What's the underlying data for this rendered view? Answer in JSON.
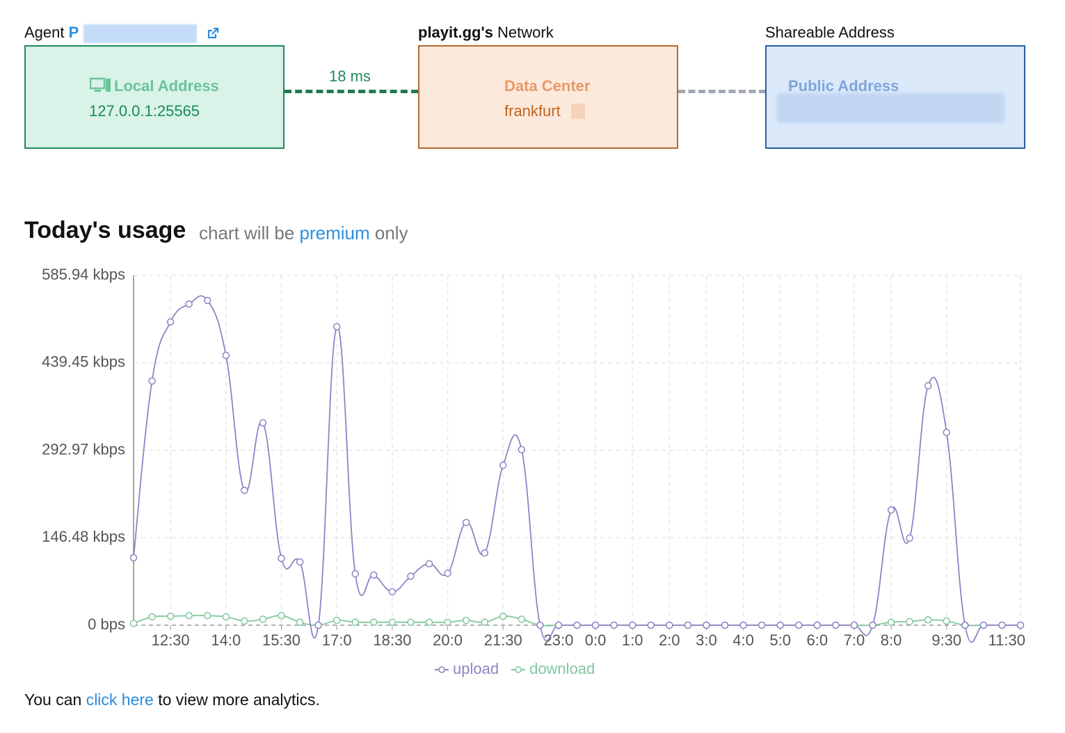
{
  "agent": {
    "label": "Agent",
    "name": "P"
  },
  "network": {
    "brand": "playit.gg's",
    "label": "Network"
  },
  "shareable": {
    "label": "Shareable Address"
  },
  "local": {
    "title": "Local Address",
    "address": "127.0.0.1:25565"
  },
  "latency": "18 ms",
  "data_center": {
    "title": "Data Center",
    "location": "frankfurt"
  },
  "public": {
    "title": "Public Address"
  },
  "usage": {
    "title": "Today's usage",
    "note": "chart will be",
    "link": "premium",
    "note_end": "only"
  },
  "footer": {
    "before": "You can",
    "link": "click here",
    "after": "to view more analytics."
  },
  "chart_data": {
    "type": "line",
    "categories": [
      null,
      null,
      "12:30",
      null,
      null,
      "14:0",
      null,
      null,
      "15:30",
      null,
      null,
      "17:0",
      null,
      null,
      "18:30",
      null,
      null,
      "20:0",
      null,
      null,
      "21:30",
      null,
      null,
      "23:0",
      null,
      "0:0",
      null,
      "1:0",
      null,
      "2:0",
      null,
      "3:0",
      null,
      "4:0",
      null,
      "5:0",
      null,
      "6:0",
      null,
      "7:0",
      null,
      "8:0",
      null,
      null,
      "9:30",
      null,
      null,
      null,
      "11:30"
    ],
    "series": [
      {
        "name": "upload",
        "color": "#8c84c6",
        "values": [
          113,
          409,
          508,
          538,
          544,
          452,
          226,
          339,
          112,
          106,
          0,
          500,
          86,
          84,
          56,
          82,
          103,
          87,
          172,
          121,
          268,
          294,
          0,
          0,
          0,
          0,
          0,
          0,
          0,
          0,
          0,
          0,
          0,
          0,
          0,
          0,
          0,
          0,
          0,
          0,
          0,
          193,
          146,
          401,
          323,
          0,
          0,
          0,
          0
        ]
      },
      {
        "name": "download",
        "color": "#7fc79c",
        "values": [
          3,
          14,
          15,
          16,
          16,
          14,
          7,
          10,
          16,
          5,
          0,
          8,
          5,
          5,
          5,
          5,
          5,
          5,
          8,
          5,
          15,
          10,
          0,
          0,
          0,
          0,
          0,
          0,
          0,
          0,
          0,
          0,
          0,
          0,
          0,
          0,
          0,
          0,
          0,
          0,
          0,
          5,
          6,
          9,
          7,
          0,
          0,
          0,
          0
        ]
      }
    ],
    "ylim": [
      0,
      585.94
    ],
    "yticks": [
      {
        "value": 0,
        "label": "0 bps"
      },
      {
        "value": 146.48,
        "label": "146.48 kbps"
      },
      {
        "value": 292.97,
        "label": "292.97 kbps"
      },
      {
        "value": 439.45,
        "label": "439.45 kbps"
      },
      {
        "value": 585.94,
        "label": "585.94 kbps"
      }
    ],
    "grid": true,
    "legend": "bottom"
  }
}
